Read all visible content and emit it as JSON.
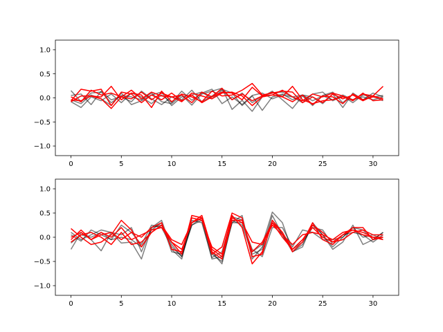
{
  "chart_data": [
    {
      "type": "line",
      "title": "",
      "xlabel": "",
      "ylabel": "",
      "xlim": [
        -1.55,
        32.55
      ],
      "ylim": [
        -1.2,
        1.2
      ],
      "xticks": [
        0,
        5,
        10,
        15,
        20,
        25,
        30
      ],
      "yticks": [
        -1.0,
        -0.5,
        0.0,
        0.5,
        1.0
      ],
      "xtick_labels": [
        "0",
        "5",
        "10",
        "15",
        "20",
        "25",
        "30"
      ],
      "ytick_labels": [
        "−1.0",
        "−0.5",
        "0.0",
        "0.5",
        "1.0"
      ],
      "grid": false,
      "legend": "none",
      "x": [
        0,
        1,
        2,
        3,
        4,
        5,
        6,
        7,
        8,
        9,
        10,
        11,
        12,
        13,
        14,
        15,
        16,
        17,
        18,
        19,
        20,
        21,
        22,
        23,
        24,
        25,
        26,
        27,
        28,
        29,
        30,
        31
      ],
      "series": [
        {
          "color": "#000000",
          "values": [
            0.15,
            -0.08,
            0.1,
            0.12,
            -0.1,
            0.05,
            0.02,
            -0.04,
            0.1,
            -0.08,
            -0.12,
            0.06,
            -0.15,
            0.08,
            0.14,
            0.2,
            -0.24,
            -0.05,
            -0.28,
            0.02,
            0.14,
            -0.04,
            -0.22,
            0.04,
            -0.16,
            0.05,
            0.12,
            -0.1,
            0.08,
            -0.04,
            0.1,
            0.02
          ]
        },
        {
          "color": "#000000",
          "values": [
            -0.08,
            -0.2,
            0.02,
            -0.06,
            0.08,
            -0.1,
            0.1,
            0.02,
            -0.12,
            0.06,
            -0.1,
            0.14,
            -0.05,
            0.1,
            0.18,
            -0.12,
            0.02,
            -0.14,
            0.05,
            0.1,
            -0.02,
            0.06,
            0.02,
            -0.1,
            0.08,
            0.12,
            -0.06,
            0.04,
            -0.1,
            0.06,
            0.02,
            0.05
          ]
        },
        {
          "color": "#000000",
          "values": [
            0.05,
            0.08,
            -0.14,
            0.14,
            -0.04,
            0.02,
            -0.08,
            0.14,
            -0.02,
            -0.14,
            0.02,
            -0.04,
            0.16,
            -0.08,
            0.04,
            0.18,
            0.1,
            -0.16,
            0.04,
            -0.26,
            0.02,
            0.08,
            -0.04,
            0.06,
            0.02,
            -0.12,
            0.08,
            -0.2,
            0.1,
            -0.04,
            0.04,
            -0.06
          ]
        },
        {
          "color": "#000000",
          "values": [
            -0.04,
            -0.12,
            0.06,
            -0.02,
            -0.16,
            0.1,
            -0.14,
            -0.06,
            0.06,
            0.12,
            -0.16,
            0.02,
            0.06,
            0.12,
            -0.02,
            0.16,
            -0.04,
            0.1,
            -0.1,
            0.04,
            0.1,
            0.12,
            0.02,
            0.06,
            -0.06,
            0.04,
            -0.04,
            0.06,
            -0.04,
            0.02,
            -0.04,
            0.02
          ]
        },
        {
          "color": "#ff0000",
          "values": [
            -0.06,
            0.18,
            0.14,
            0.18,
            -0.16,
            0.12,
            0.08,
            -0.1,
            0.06,
            -0.04,
            0.1,
            -0.06,
            0.06,
            -0.1,
            0.02,
            0.2,
            -0.04,
            0.08,
            -0.06,
            0.04,
            0.12,
            0.02,
            -0.08,
            0.06,
            -0.14,
            0.04,
            0.02,
            -0.12,
            0.08,
            -0.04,
            0.02,
            -0.02
          ]
        },
        {
          "color": "#ff0000",
          "values": [
            -0.04,
            -0.06,
            0.04,
            0.02,
            0.24,
            -0.04,
            0.1,
            0.06,
            -0.2,
            0.14,
            -0.08,
            0.08,
            0.02,
            -0.08,
            0.14,
            0.04,
            0.06,
            0.16,
            0.3,
            0.06,
            0.1,
            0.14,
            0.12,
            -0.1,
            0.02,
            -0.1,
            0.08,
            -0.02,
            0.06,
            -0.06,
            0.04,
            0.24
          ]
        },
        {
          "color": "#ff0000",
          "values": [
            0.02,
            -0.08,
            0.16,
            0.06,
            0.1,
            0.02,
            -0.02,
            0.12,
            -0.04,
            0.1,
            0.02,
            -0.08,
            0.1,
            0.04,
            -0.02,
            0.1,
            0.12,
            0.04,
            -0.16,
            0.02,
            0.06,
            0.16,
            0.02,
            -0.06,
            0.08,
            0.02,
            0.1,
            0.04,
            -0.06,
            0.1,
            -0.06,
            -0.04
          ]
        },
        {
          "color": "#ff0000",
          "values": [
            -0.08,
            0.04,
            0.04,
            -0.02,
            -0.22,
            0.02,
            0.16,
            -0.02,
            0.12,
            0.04,
            0.02,
            0.06,
            -0.1,
            0.12,
            0.02,
            0.12,
            0.1,
            -0.04,
            0.22,
            0.04,
            0.06,
            0.02,
            0.24,
            -0.04,
            -0.12,
            -0.06,
            -0.04,
            0.02,
            -0.04,
            0.08,
            0.04,
            -0.02
          ]
        }
      ]
    },
    {
      "type": "line",
      "title": "",
      "xlabel": "",
      "ylabel": "",
      "xlim": [
        -1.55,
        32.55
      ],
      "ylim": [
        -1.2,
        1.2
      ],
      "xticks": [
        0,
        5,
        10,
        15,
        20,
        25,
        30
      ],
      "yticks": [
        -1.0,
        -0.5,
        0.0,
        0.5,
        1.0
      ],
      "xtick_labels": [
        "0",
        "5",
        "10",
        "15",
        "20",
        "25",
        "30"
      ],
      "ytick_labels": [
        "−1.0",
        "−0.5",
        "0.0",
        "0.5",
        "1.0"
      ],
      "grid": false,
      "legend": "none",
      "x": [
        0,
        1,
        2,
        3,
        4,
        5,
        6,
        7,
        8,
        9,
        10,
        11,
        12,
        13,
        14,
        15,
        16,
        17,
        18,
        19,
        20,
        21,
        22,
        23,
        24,
        25,
        26,
        27,
        28,
        29,
        30,
        31
      ],
      "series": [
        {
          "color": "#000000",
          "values": [
            -0.25,
            0.1,
            -0.05,
            -0.28,
            0.1,
            -0.12,
            -0.1,
            -0.45,
            0.2,
            0.35,
            -0.25,
            -0.45,
            0.35,
            0.3,
            -0.42,
            -0.3,
            0.42,
            0.36,
            -0.3,
            -0.15,
            0.52,
            0.3,
            -0.3,
            -0.2,
            0.3,
            0.05,
            -0.25,
            -0.1,
            0.25,
            -0.15,
            -0.05,
            0.1
          ]
        },
        {
          "color": "#000000",
          "values": [
            0.05,
            -0.08,
            0.15,
            0.05,
            -0.05,
            0.25,
            0.1,
            -0.15,
            0.25,
            0.2,
            -0.2,
            -0.4,
            0.25,
            0.4,
            -0.3,
            -0.55,
            0.35,
            0.25,
            -0.35,
            -0.25,
            0.45,
            0.05,
            -0.25,
            -0.1,
            0.2,
            0.15,
            -0.15,
            0.05,
            0.1,
            0.05,
            -0.1,
            0.05
          ]
        },
        {
          "color": "#000000",
          "values": [
            -0.12,
            0.05,
            0.0,
            0.1,
            -0.05,
            0.0,
            -0.05,
            -0.2,
            0.15,
            0.3,
            -0.3,
            -0.35,
            0.25,
            0.35,
            -0.45,
            -0.4,
            0.3,
            0.3,
            -0.25,
            -0.4,
            0.2,
            0.2,
            -0.2,
            0.15,
            0.1,
            -0.05,
            -0.05,
            0.0,
            0.2,
            0.15,
            -0.05,
            0.1
          ]
        },
        {
          "color": "#000000",
          "values": [
            0.1,
            -0.05,
            0.05,
            0.15,
            0.1,
            0.05,
            0.2,
            -0.3,
            0.2,
            0.25,
            -0.15,
            -0.4,
            0.3,
            0.4,
            -0.35,
            -0.5,
            0.3,
            0.45,
            -0.45,
            -0.2,
            0.35,
            0.05,
            -0.3,
            -0.15,
            0.25,
            0.05,
            -0.2,
            0.0,
            0.2,
            0.0,
            0.05,
            -0.05
          ]
        },
        {
          "color": "#ff0000",
          "values": [
            0.18,
            0.0,
            -0.15,
            -0.1,
            0.05,
            0.35,
            0.15,
            -0.2,
            0.1,
            0.25,
            -0.1,
            -0.35,
            0.45,
            0.4,
            -0.35,
            -0.2,
            0.5,
            0.4,
            -0.4,
            -0.35,
            0.35,
            0.1,
            -0.3,
            -0.1,
            0.3,
            -0.05,
            -0.15,
            0.05,
            0.2,
            0.2,
            -0.05,
            0.0
          ]
        },
        {
          "color": "#ff0000",
          "values": [
            -0.05,
            0.15,
            -0.05,
            0.05,
            0.1,
            -0.05,
            0.1,
            0.0,
            0.2,
            0.3,
            -0.25,
            -0.3,
            0.4,
            0.35,
            -0.2,
            -0.35,
            0.45,
            0.2,
            -0.55,
            -0.3,
            0.3,
            0.0,
            -0.25,
            -0.05,
            0.25,
            0.1,
            -0.1,
            -0.05,
            0.1,
            0.15,
            0.05,
            0.05
          ]
        },
        {
          "color": "#ff0000",
          "values": [
            -0.1,
            0.05,
            0.1,
            0.0,
            -0.15,
            0.1,
            -0.15,
            -0.1,
            0.1,
            0.25,
            -0.05,
            -0.15,
            0.3,
            0.45,
            -0.25,
            -0.4,
            0.4,
            0.3,
            -0.1,
            -0.15,
            0.25,
            0.05,
            -0.15,
            0.05,
            0.1,
            0.05,
            -0.05,
            0.1,
            0.15,
            0.05,
            0.0,
            -0.05
          ]
        },
        {
          "color": "#ff0000",
          "values": [
            0.0,
            0.1,
            -0.05,
            0.1,
            0.0,
            0.2,
            -0.05,
            0.05,
            0.15,
            0.2,
            -0.1,
            -0.25,
            0.3,
            0.4,
            -0.3,
            -0.45,
            0.35,
            0.35,
            -0.3,
            -0.1,
            0.3,
            0.1,
            -0.25,
            -0.05,
            0.2,
            0.0,
            -0.1,
            0.05,
            0.15,
            0.1,
            0.0,
            0.0
          ]
        }
      ]
    }
  ]
}
